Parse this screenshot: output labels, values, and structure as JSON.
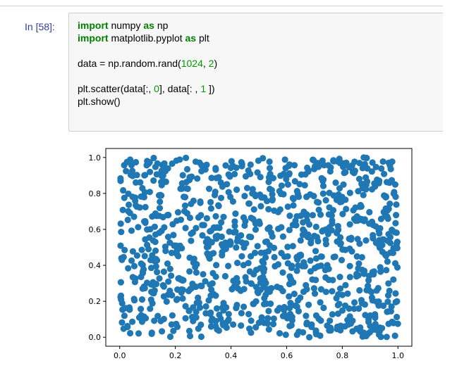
{
  "cell": {
    "prompt": "In [58]:",
    "code_lines": [
      [
        {
          "t": "import",
          "c": "kw"
        },
        {
          "t": " numpy ",
          "c": ""
        },
        {
          "t": "as",
          "c": "kw"
        },
        {
          "t": " np",
          "c": ""
        }
      ],
      [
        {
          "t": "import",
          "c": "kw"
        },
        {
          "t": " matplotlib.pyplot ",
          "c": ""
        },
        {
          "t": "as",
          "c": "kw"
        },
        {
          "t": " plt",
          "c": ""
        }
      ],
      [],
      [
        {
          "t": "data = np.random.rand(",
          "c": ""
        },
        {
          "t": "1024",
          "c": "num"
        },
        {
          "t": ", ",
          "c": ""
        },
        {
          "t": "2",
          "c": "num"
        },
        {
          "t": ")",
          "c": ""
        }
      ],
      [],
      [
        {
          "t": "plt.scatter(data[:, ",
          "c": ""
        },
        {
          "t": "0",
          "c": "num"
        },
        {
          "t": "], data[: , ",
          "c": ""
        },
        {
          "t": "1",
          "c": "num"
        },
        {
          "t": " ])",
          "c": ""
        }
      ],
      [
        {
          "t": "plt.show()",
          "c": ""
        }
      ]
    ]
  },
  "chart_data": {
    "type": "scatter",
    "n_points": 1024,
    "distribution": "uniform random in [0,1] x [0,1]",
    "xlim": [
      -0.05,
      1.05
    ],
    "ylim": [
      -0.05,
      1.05
    ],
    "xticks": [
      "0.0",
      "0.2",
      "0.4",
      "0.6",
      "0.8",
      "1.0"
    ],
    "yticks": [
      "0.0",
      "0.2",
      "0.4",
      "0.6",
      "0.8",
      "1.0"
    ],
    "marker_color": "#1f77b4",
    "grid": false
  }
}
